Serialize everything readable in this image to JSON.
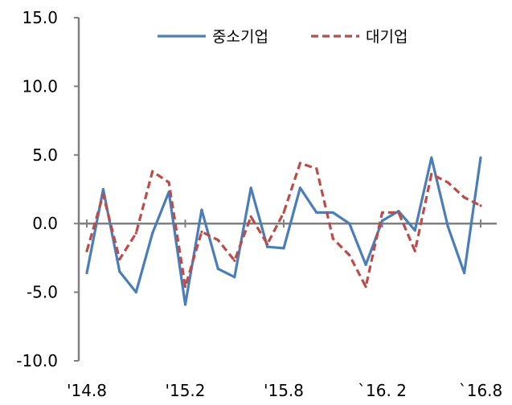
{
  "chart_data": {
    "type": "line",
    "title": "",
    "xlabel": "",
    "ylabel": "",
    "ylim": [
      -10,
      15
    ],
    "yticks": [
      "15.0",
      "10.0",
      "5.0",
      "0.0",
      "-5.0",
      "-10.0"
    ],
    "x_tick_labels": [
      "'14.8",
      "'15.2",
      "'15.8",
      "`16. 2",
      "`16.8"
    ],
    "legend_position": "top",
    "zero_line_color": "#808080",
    "axis_color": "#808080",
    "series": [
      {
        "name": "중소기업",
        "color": "#4a7ebb",
        "style": "solid",
        "values": [
          -3.6,
          2.5,
          -3.5,
          -5.0,
          -0.7,
          2.3,
          -5.9,
          1.0,
          -3.3,
          -3.9,
          2.6,
          -1.7,
          -1.8,
          2.6,
          0.8,
          0.8,
          0.0,
          -3.0,
          0.2,
          0.9,
          -0.5,
          4.8,
          -0.2,
          -3.6,
          4.8
        ]
      },
      {
        "name": "대기업",
        "color": "#be4b48",
        "style": "dashed",
        "values": [
          -2.0,
          2.1,
          -2.6,
          -0.7,
          3.8,
          3.0,
          -4.6,
          -0.6,
          -1.2,
          -2.7,
          0.5,
          -1.5,
          0.8,
          4.4,
          4.0,
          -1.1,
          -2.3,
          -4.6,
          0.8,
          0.8,
          -2.0,
          3.6,
          3.0,
          1.9,
          1.3
        ]
      }
    ]
  }
}
